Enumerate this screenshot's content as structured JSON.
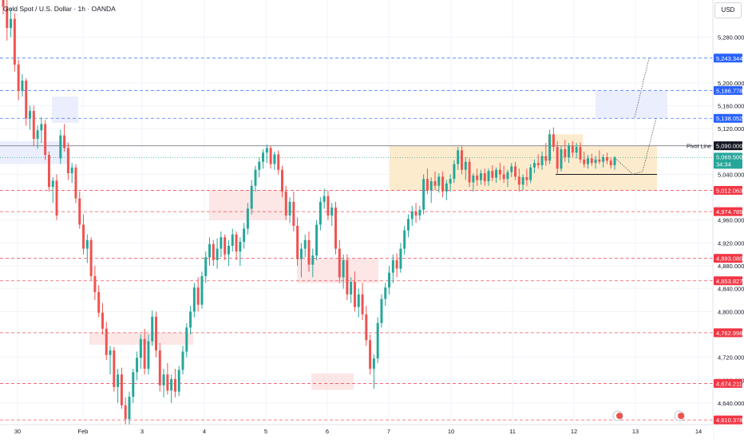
{
  "header": {
    "symbol_line": "Gold Spot / U.S. Dollar · 1h · OANDA"
  },
  "currency_button": "USD",
  "colors": {
    "up": "#26a69a",
    "down": "#ef5350",
    "support": "#f23645",
    "resistance": "#2962ff",
    "pivot": "#131722",
    "last": "#26a69a",
    "range_zone": "#fde8c4",
    "demand_zone": "#fde2e2",
    "target_zone": "#e8ebfd"
  },
  "chart_data": {
    "type": "candlestick",
    "symbol": "Gold Spot / U.S. Dollar",
    "timeframe": "1h",
    "broker": "OANDA",
    "ylim": [
      4605,
      5345
    ],
    "y_ticks": [
      5280,
      5200,
      5160,
      5120,
      5040,
      4960,
      4920,
      4880,
      4840,
      4800,
      4720,
      4680,
      4640
    ],
    "y_tick_labels": [
      "5,280.000",
      "5,200.000",
      "5,160.000",
      "5,120.000",
      "5,040.000",
      "4,960.000",
      "4,920.000",
      "4,880.000",
      "4,840.000",
      "4,800.000",
      "4,720.000",
      "4,680.000",
      "4,640.000"
    ],
    "x_ticks": [
      "30",
      "Feb",
      "3",
      "4",
      "5",
      "6",
      "7",
      "10",
      "11",
      "12",
      "13",
      "14"
    ],
    "levels": [
      {
        "value": 5243.344,
        "label": "5,243.344",
        "kind": "resistance"
      },
      {
        "value": 5186.778,
        "label": "5,186.778",
        "kind": "resistance"
      },
      {
        "value": 5138.052,
        "label": "5,138.052",
        "kind": "resistance"
      },
      {
        "value": 5090.0,
        "label": "5,090.000",
        "kind": "pivot",
        "name": "Pivot Line"
      },
      {
        "value": 5069.5,
        "label": "5,069.500",
        "kind": "last",
        "countdown": "34:34"
      },
      {
        "value": 5012.063,
        "label": "5,012.063",
        "kind": "support"
      },
      {
        "value": 4974.785,
        "label": "4,974.785",
        "kind": "support"
      },
      {
        "value": 4893.08,
        "label": "4,893.080",
        "kind": "support"
      },
      {
        "value": 4853.827,
        "label": "4,853.827",
        "kind": "support"
      },
      {
        "value": 4762.998,
        "label": "4,762.998",
        "kind": "support"
      },
      {
        "value": 4674.211,
        "label": "4,674.211",
        "kind": "support"
      },
      {
        "value": 4610.378,
        "label": "4,610.378",
        "kind": "support"
      }
    ],
    "zones": [
      {
        "kind": "target_zone",
        "ymin": 5138,
        "ymax": 5186,
        "from": "12",
        "to": "13"
      },
      {
        "kind": "target_zone",
        "ymin": 5130,
        "ymax": 5176,
        "from": "31",
        "to": "Feb"
      },
      {
        "kind": "target_zone",
        "ymin": 5058,
        "ymax": 5098,
        "from": "30",
        "to": "31"
      },
      {
        "kind": "range_zone",
        "ymin": 5012,
        "ymax": 5090,
        "from": "7",
        "to": "13"
      },
      {
        "kind": "range_zone",
        "ymin": 5090,
        "ymax": 5110,
        "from": "11",
        "to": "12"
      },
      {
        "kind": "demand_zone",
        "ymin": 4960,
        "ymax": 5012,
        "from": "4",
        "to": "5"
      },
      {
        "kind": "demand_zone",
        "ymin": 4850,
        "ymax": 4893,
        "from": "5",
        "to": "6"
      },
      {
        "kind": "demand_zone",
        "ymin": 4742,
        "ymax": 4763,
        "from": "Feb",
        "to": "3"
      },
      {
        "kind": "demand_zone",
        "ymin": 4663,
        "ymax": 4692,
        "from": "6",
        "to": "6"
      }
    ],
    "projections": [
      {
        "kind": "path",
        "points": [
          [
            5069,
            5080
          ],
          [
            5040,
            5012
          ],
          [
            5045,
            5090
          ],
          [
            5138,
            5138
          ]
        ]
      },
      {
        "kind": "path",
        "points": [
          [
            5140,
            5186
          ],
          [
            5243,
            5243
          ]
        ]
      }
    ],
    "ohlc": [
      [
        5370,
        5392,
        5320,
        5333
      ],
      [
        5333,
        5352,
        5274,
        5296
      ],
      [
        5296,
        5331,
        5280,
        5312
      ],
      [
        5312,
        5322,
        5220,
        5232
      ],
      [
        5232,
        5240,
        5170,
        5186
      ],
      [
        5186,
        5215,
        5176,
        5204
      ],
      [
        5204,
        5208,
        5125,
        5138
      ],
      [
        5138,
        5160,
        5118,
        5151
      ],
      [
        5151,
        5160,
        5090,
        5102
      ],
      [
        5102,
        5126,
        5085,
        5117
      ],
      [
        5117,
        5140,
        5095,
        5128
      ],
      [
        5128,
        5135,
        5065,
        5074
      ],
      [
        5074,
        5080,
        5010,
        5018
      ],
      [
        5018,
        5035,
        4990,
        5029
      ],
      [
        5029,
        5040,
        4960,
        4968
      ],
      [
        5068,
        5118,
        5058,
        5108
      ],
      [
        5108,
        5128,
        5080,
        5086
      ],
      [
        5086,
        5095,
        5030,
        5042
      ],
      [
        5042,
        5060,
        5025,
        5052
      ],
      [
        5052,
        5058,
        4990,
        4998
      ],
      [
        4998,
        5010,
        4945,
        4952
      ],
      [
        4952,
        4970,
        4900,
        4910
      ],
      [
        4910,
        4935,
        4885,
        4925
      ],
      [
        4925,
        4930,
        4855,
        4862
      ],
      [
        4862,
        4880,
        4820,
        4834
      ],
      [
        4834,
        4846,
        4790,
        4798
      ],
      [
        4798,
        4815,
        4760,
        4770
      ],
      [
        4770,
        4782,
        4715,
        4724
      ],
      [
        4724,
        4740,
        4690,
        4732
      ],
      [
        4732,
        4738,
        4660,
        4668
      ],
      [
        4668,
        4700,
        4640,
        4690
      ],
      [
        4690,
        4702,
        4630,
        4636
      ],
      [
        4636,
        4650,
        4600,
        4612
      ],
      [
        4612,
        4660,
        4590,
        4651
      ],
      [
        4651,
        4700,
        4640,
        4694
      ],
      [
        4694,
        4730,
        4680,
        4719
      ],
      [
        4719,
        4760,
        4700,
        4752
      ],
      [
        4752,
        4770,
        4690,
        4700
      ],
      [
        4700,
        4760,
        4690,
        4748
      ],
      [
        4748,
        4802,
        4740,
        4791
      ],
      [
        4791,
        4800,
        4720,
        4732
      ],
      [
        4732,
        4745,
        4660,
        4671
      ],
      [
        4671,
        4700,
        4650,
        4690
      ],
      [
        4690,
        4710,
        4655,
        4662
      ],
      [
        4662,
        4690,
        4640,
        4682
      ],
      [
        4682,
        4700,
        4650,
        4660
      ],
      [
        4660,
        4705,
        4652,
        4698
      ],
      [
        4698,
        4740,
        4690,
        4730
      ],
      [
        4730,
        4780,
        4720,
        4772
      ],
      [
        4772,
        4810,
        4760,
        4800
      ],
      [
        4800,
        4850,
        4790,
        4842
      ],
      [
        4842,
        4860,
        4800,
        4812
      ],
      [
        4812,
        4870,
        4805,
        4862
      ],
      [
        4862,
        4905,
        4850,
        4895
      ],
      [
        4895,
        4930,
        4880,
        4918
      ],
      [
        4918,
        4925,
        4880,
        4890
      ],
      [
        4890,
        4928,
        4875,
        4910
      ],
      [
        4910,
        4940,
        4895,
        4930
      ],
      [
        4930,
        4935,
        4890,
        4900
      ],
      [
        4900,
        4925,
        4880,
        4915
      ],
      [
        4915,
        4945,
        4905,
        4935
      ],
      [
        4935,
        4940,
        4890,
        4905
      ],
      [
        4905,
        4930,
        4880,
        4922
      ],
      [
        4922,
        4955,
        4910,
        4945
      ],
      [
        4945,
        4990,
        4935,
        4980
      ],
      [
        4980,
        5030,
        4970,
        5020
      ],
      [
        5020,
        5055,
        5010,
        5048
      ],
      [
        5048,
        5070,
        5035,
        5062
      ],
      [
        5062,
        5084,
        5050,
        5078
      ],
      [
        5078,
        5092,
        5060,
        5086
      ],
      [
        5086,
        5090,
        5050,
        5058
      ],
      [
        5058,
        5080,
        5048,
        5075
      ],
      [
        5075,
        5082,
        5040,
        5048
      ],
      [
        5048,
        5055,
        5000,
        5010
      ],
      [
        5010,
        5020,
        4960,
        4968
      ],
      [
        4968,
        5000,
        4955,
        4992
      ],
      [
        4992,
        5010,
        4940,
        4950
      ],
      [
        4950,
        4965,
        4880,
        4892
      ],
      [
        4892,
        4920,
        4860,
        4910
      ],
      [
        4910,
        4935,
        4895,
        4925
      ],
      [
        4925,
        4940,
        4870,
        4882
      ],
      [
        4882,
        4910,
        4860,
        4898
      ],
      [
        4898,
        4960,
        4890,
        4952
      ],
      [
        4952,
        5000,
        4942,
        4992
      ],
      [
        4992,
        5015,
        4980,
        5002
      ],
      [
        5002,
        5012,
        4960,
        4968
      ],
      [
        4968,
        4990,
        4950,
        4982
      ],
      [
        4982,
        4992,
        4900,
        4910
      ],
      [
        4910,
        4925,
        4850,
        4860
      ],
      [
        4860,
        4900,
        4840,
        4890
      ],
      [
        4890,
        4900,
        4820,
        4830
      ],
      [
        4830,
        4860,
        4815,
        4852
      ],
      [
        4852,
        4870,
        4800,
        4808
      ],
      [
        4808,
        4840,
        4790,
        4830
      ],
      [
        4830,
        4850,
        4785,
        4795
      ],
      [
        4795,
        4810,
        4740,
        4750
      ],
      [
        4750,
        4760,
        4690,
        4700
      ],
      [
        4700,
        4725,
        4665,
        4718
      ],
      [
        4718,
        4790,
        4710,
        4780
      ],
      [
        4780,
        4830,
        4772,
        4822
      ],
      [
        4822,
        4850,
        4810,
        4842
      ],
      [
        4842,
        4880,
        4830,
        4868
      ],
      [
        4868,
        4900,
        4850,
        4890
      ],
      [
        4890,
        4902,
        4860,
        4875
      ],
      [
        4875,
        4920,
        4868,
        4910
      ],
      [
        4910,
        4950,
        4900,
        4942
      ],
      [
        4942,
        4970,
        4930,
        4962
      ],
      [
        4962,
        4985,
        4950,
        4975
      ],
      [
        4975,
        4990,
        4955,
        4968
      ],
      [
        4968,
        4985,
        4960,
        4978
      ],
      [
        4978,
        5040,
        4970,
        5032
      ],
      [
        5032,
        5050,
        5005,
        5012
      ],
      [
        5012,
        5035,
        4990,
        5028
      ],
      [
        5028,
        5045,
        5012,
        5020
      ],
      [
        5020,
        5042,
        5008,
        5036
      ],
      [
        5036,
        5045,
        5000,
        5010
      ],
      [
        5010,
        5030,
        4995,
        5024
      ],
      [
        5024,
        5040,
        5010,
        5032
      ],
      [
        5032,
        5065,
        5025,
        5058
      ],
      [
        5058,
        5088,
        5048,
        5082
      ],
      [
        5082,
        5090,
        5040,
        5048
      ],
      [
        5048,
        5070,
        5030,
        5062
      ],
      [
        5062,
        5068,
        5018,
        5026
      ],
      [
        5026,
        5042,
        5010,
        5038
      ],
      [
        5038,
        5050,
        5020,
        5030
      ],
      [
        5030,
        5048,
        5022,
        5042
      ],
      [
        5042,
        5050,
        5020,
        5028
      ],
      [
        5028,
        5050,
        5020,
        5046
      ],
      [
        5046,
        5056,
        5028,
        5034
      ],
      [
        5034,
        5052,
        5025,
        5048
      ],
      [
        5048,
        5060,
        5030,
        5040
      ],
      [
        5040,
        5055,
        5025,
        5032
      ],
      [
        5032,
        5048,
        5018,
        5044
      ],
      [
        5044,
        5060,
        5035,
        5054
      ],
      [
        5054,
        5062,
        5030,
        5036
      ],
      [
        5036,
        5050,
        5010,
        5022
      ],
      [
        5022,
        5040,
        5012,
        5035
      ],
      [
        5035,
        5050,
        5020,
        5030
      ],
      [
        5030,
        5058,
        5025,
        5052
      ],
      [
        5052,
        5066,
        5042,
        5060
      ],
      [
        5060,
        5075,
        5050,
        5056
      ],
      [
        5056,
        5080,
        5048,
        5072
      ],
      [
        5072,
        5095,
        5055,
        5064
      ],
      [
        5064,
        5118,
        5058,
        5110
      ],
      [
        5110,
        5122,
        5080,
        5088
      ],
      [
        5088,
        5098,
        5040,
        5050
      ],
      [
        5050,
        5090,
        5045,
        5084
      ],
      [
        5084,
        5100,
        5062,
        5070
      ],
      [
        5070,
        5095,
        5060,
        5090
      ],
      [
        5090,
        5098,
        5070,
        5078
      ],
      [
        5078,
        5095,
        5068,
        5088
      ],
      [
        5088,
        5096,
        5060,
        5066
      ],
      [
        5066,
        5080,
        5052,
        5058
      ],
      [
        5058,
        5074,
        5050,
        5068
      ],
      [
        5068,
        5076,
        5055,
        5060
      ],
      [
        5060,
        5072,
        5050,
        5066
      ],
      [
        5066,
        5082,
        5058,
        5062
      ],
      [
        5062,
        5075,
        5052,
        5070
      ],
      [
        5070,
        5078,
        5058,
        5064
      ],
      [
        5064,
        5070,
        5050,
        5056
      ],
      [
        5056,
        5072,
        5048,
        5069
      ]
    ]
  }
}
